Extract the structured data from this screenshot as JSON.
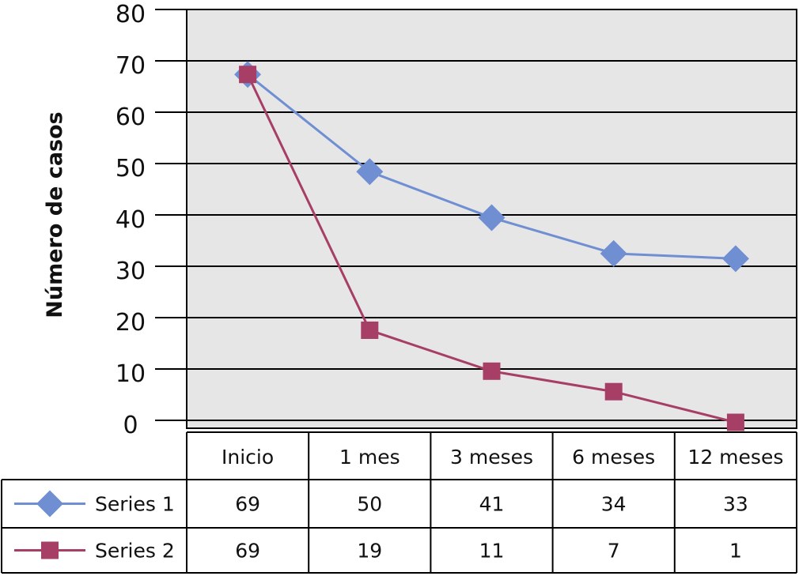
{
  "chart_data": {
    "type": "line",
    "ylabel": "Número de casos",
    "xlabel": "",
    "ylim": [
      0,
      80
    ],
    "yticks": [
      "80",
      "70",
      "60",
      "50",
      "40",
      "30",
      "20",
      "10",
      "0"
    ],
    "categories": [
      "Inicio",
      "1 mes",
      "3 meses",
      "6 meses",
      "12 meses"
    ],
    "grid": true,
    "legend": "data-table-left",
    "series": [
      {
        "name": "Series 1",
        "values": [
          69,
          50,
          41,
          34,
          33
        ],
        "color": "#6f8fd2",
        "marker": "diamond",
        "table_values": [
          "69",
          "50",
          "41",
          "34",
          "33"
        ]
      },
      {
        "name": "Series 2",
        "values": [
          69,
          19,
          11,
          7,
          1
        ],
        "color": "#a63e66",
        "marker": "square",
        "table_values": [
          "69",
          "19",
          "11",
          "7",
          "1"
        ]
      }
    ]
  },
  "colors": {
    "plot_background": "#e6e6e6",
    "gridline": "#000000"
  }
}
